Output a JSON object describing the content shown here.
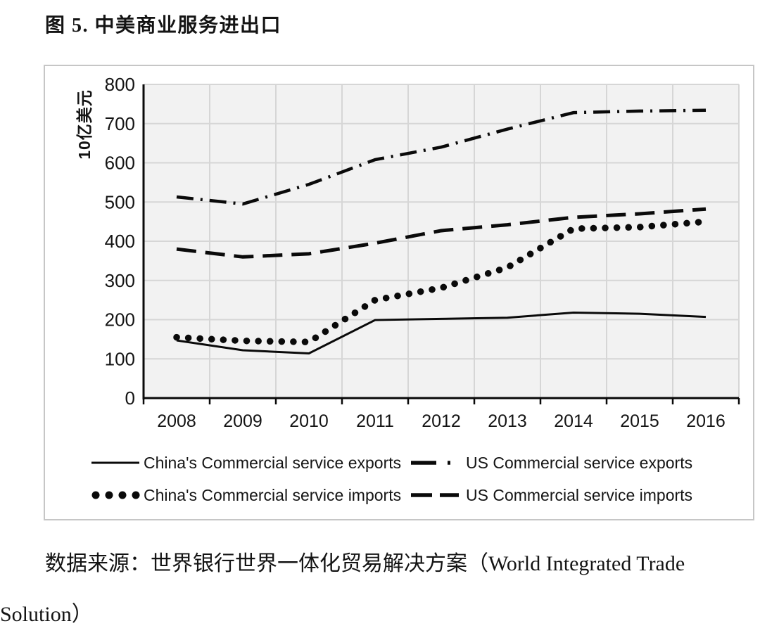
{
  "title": "图 5. 中美商业服务进出口",
  "source_note": {
    "line1": "数据来源：世界银行世界一体化贸易解决方案（World Integrated Trade",
    "line2": "Solution）"
  },
  "chart_data": {
    "type": "line",
    "title": "图 5. 中美商业服务进出口",
    "xlabel": "",
    "ylabel": "10亿美元",
    "categories": [
      "2008",
      "2009",
      "2010",
      "2011",
      "2012",
      "2013",
      "2014",
      "2015",
      "2016"
    ],
    "ylim": [
      0,
      800
    ],
    "yticks": [
      0,
      100,
      200,
      300,
      400,
      500,
      600,
      700,
      800
    ],
    "grid": true,
    "plot_bg": "#f2f2f2",
    "grid_color": "#d6d6d6",
    "line_color": "#0a0a0a",
    "legend_position": "bottom",
    "series": [
      {
        "name": "China's Commercial service exports",
        "style": "solid",
        "values": [
          147,
          122,
          114,
          199,
          202,
          205,
          218,
          215,
          207
        ]
      },
      {
        "name": "US Commercial service exports",
        "style": "dashdot",
        "values": [
          513,
          495,
          545,
          608,
          640,
          686,
          728,
          732,
          734
        ]
      },
      {
        "name": "China's Commercial service imports",
        "style": "dotted",
        "values": [
          155,
          146,
          143,
          250,
          281,
          333,
          432,
          436,
          450
        ]
      },
      {
        "name": "US Commercial service imports",
        "style": "dashed",
        "values": [
          380,
          360,
          368,
          395,
          427,
          442,
          461,
          470,
          482
        ]
      }
    ]
  }
}
